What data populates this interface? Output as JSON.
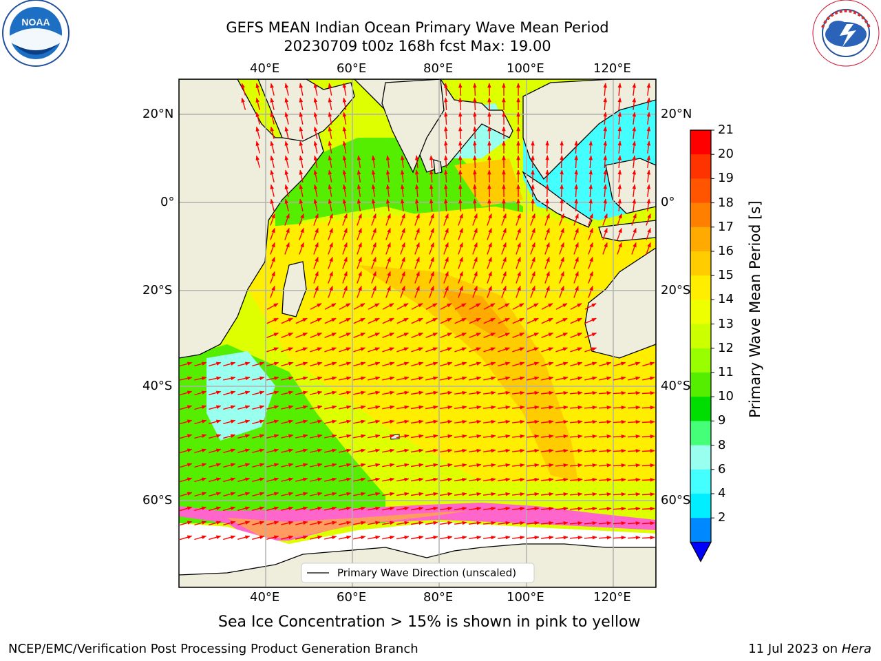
{
  "title": {
    "line1": "GEFS MEAN Indian Ocean Primary Wave Mean Period",
    "line2": "20230709 t00z 168h fcst   Max: 19.00"
  },
  "logos": {
    "left": "NOAA",
    "right": "NATIONAL WEATHER SERVICE"
  },
  "map": {
    "lon_labels": [
      "40°E",
      "60°E",
      "80°E",
      "100°E",
      "120°E"
    ],
    "lat_labels": [
      "20°N",
      "0°",
      "20°S",
      "40°S",
      "60°S"
    ],
    "legend_text": "Primary Wave Direction (unscaled)",
    "land_color": "#efeedd",
    "ice_colors": [
      "#ff66cc",
      "#ffff66"
    ]
  },
  "colorbar": {
    "label": "Primary Wave Mean Period [s]",
    "ticks": [
      "21",
      "20",
      "19",
      "18",
      "17",
      "16",
      "15",
      "14",
      "13",
      "12",
      "11",
      "10",
      "9",
      "8",
      "6",
      "4",
      "2"
    ],
    "colors_top_to_bottom": [
      "#ff0000",
      "#ff3300",
      "#ff5500",
      "#ff7f00",
      "#ffaa00",
      "#ffcc00",
      "#ffee00",
      "#eeff00",
      "#ccff00",
      "#99ff00",
      "#55ee00",
      "#00dd00",
      "#44ff77",
      "#99ffee",
      "#44ffff",
      "#00eeff",
      "#0088ff"
    ],
    "under_color": "#0000ff"
  },
  "caption": "Sea Ice Concentration > 15% is shown in pink to yellow",
  "footer": {
    "left": "NCEP/EMC/Verification Post Processing Product Generation Branch",
    "right_prefix": "11 Jul 2023 on ",
    "right_italic": "Hera"
  }
}
